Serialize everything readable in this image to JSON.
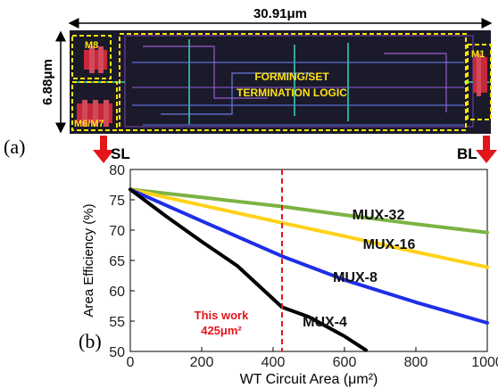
{
  "layout_figure": {
    "panel_label": "(a)",
    "width_dimension": "30.91μm",
    "height_dimension": "6.88μm",
    "blocks": {
      "m8": "M8",
      "m6m7": "M6/M7",
      "logic_line1": "FORMING/SET",
      "logic_line2": "TERMINATION LOGIC",
      "m1": "M1"
    },
    "terminals": {
      "left": "SL",
      "right": "BL"
    },
    "colors": {
      "die": "#1a1a2a",
      "block_outline": "#ffe600",
      "arrow": "#e3161c"
    }
  },
  "plot": {
    "panel_label": "(b)",
    "xlabel": "WT Circuit Area (μm²)",
    "ylabel": "Area Efficiency (%)",
    "marker_line1": "This work",
    "marker_line2": "425μm²",
    "marker_color": "#e3161c"
  },
  "chart_data": {
    "type": "line",
    "xlabel": "WT Circuit Area (μm²)",
    "ylabel": "Area Efficiency (%)",
    "xlim": [
      0,
      1000
    ],
    "ylim": [
      50,
      80
    ],
    "xticks": [
      "0",
      "200",
      "400",
      "600",
      "800",
      "1000"
    ],
    "yticks": [
      "50",
      "55",
      "60",
      "65",
      "70",
      "75",
      "80"
    ],
    "grid": false,
    "marker_x": 425,
    "series": [
      {
        "name": "MUX-32",
        "color": "#7cb342",
        "x": [
          0,
          200,
          425,
          600,
          800,
          1000
        ],
        "y": [
          76.7,
          75.4,
          73.9,
          72.5,
          71.0,
          69.6
        ]
      },
      {
        "name": "MUX-16",
        "color": "#ffd21a",
        "x": [
          0,
          200,
          425,
          600,
          800,
          1000
        ],
        "y": [
          76.7,
          74.1,
          71.2,
          69.0,
          66.4,
          63.9
        ]
      },
      {
        "name": "MUX-8",
        "color": "#1e2ee8",
        "x": [
          0,
          200,
          425,
          600,
          800,
          1000
        ],
        "y": [
          76.7,
          71.5,
          65.7,
          61.8,
          58.1,
          54.7
        ]
      },
      {
        "name": "MUX-4",
        "color": "#000000",
        "x": [
          0,
          100,
          200,
          300,
          425,
          500,
          600,
          660
        ],
        "y": [
          76.7,
          72.3,
          68.1,
          64.1,
          57.3,
          55.7,
          52.5,
          50.2
        ]
      }
    ]
  }
}
